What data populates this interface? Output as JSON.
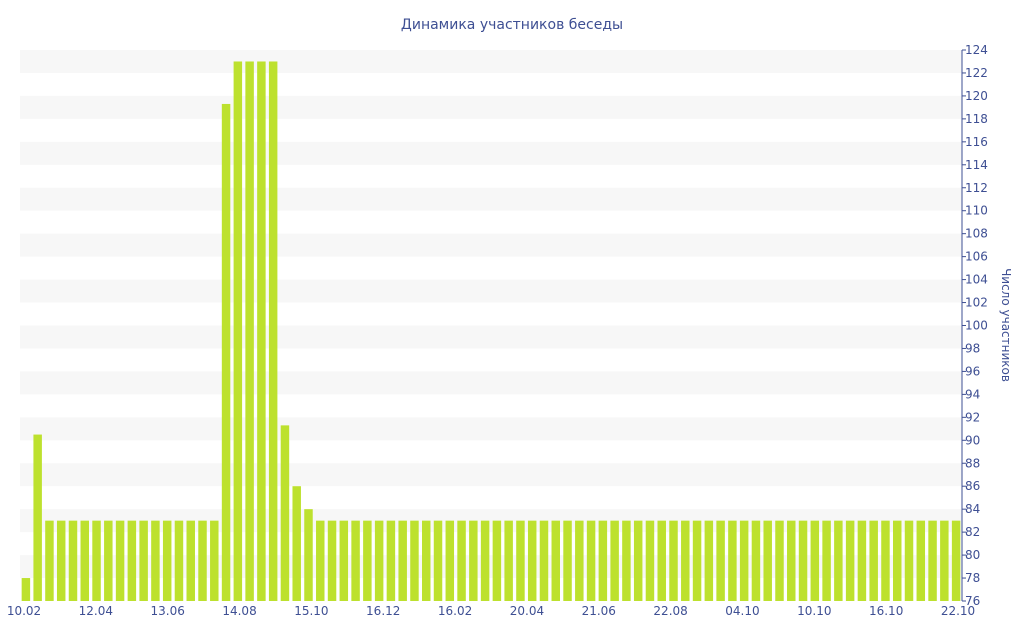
{
  "chart_data": {
    "type": "bar",
    "title": "Динамика участников беседы",
    "ylabel": "Число участников",
    "xlabel": "",
    "ylim": [
      76,
      124
    ],
    "ytick_step": 2,
    "x_tick_labels": [
      "10.02",
      "12.04",
      "13.06",
      "14.08",
      "15.10",
      "16.12",
      "16.02",
      "20.04",
      "21.06",
      "22.08",
      "04.10",
      "10.10",
      "16.10",
      "22.10"
    ],
    "values": [
      78,
      90.5,
      83,
      83,
      83,
      83,
      83,
      83,
      83,
      83,
      83,
      83,
      83,
      83,
      83,
      83,
      83,
      119.3,
      123,
      123,
      123,
      123,
      91.3,
      86,
      84,
      83,
      83,
      83,
      83,
      83,
      83,
      83,
      83,
      83,
      83,
      83,
      83,
      83,
      83,
      83,
      83,
      83,
      83,
      83,
      83,
      83,
      83,
      83,
      83,
      83,
      83,
      83,
      83,
      83,
      83,
      83,
      83,
      83,
      83,
      83,
      83,
      83,
      83,
      83,
      83,
      83,
      83,
      83,
      83,
      83,
      83,
      83,
      83,
      83,
      83,
      83,
      83,
      83,
      83,
      83
    ],
    "grid": true,
    "bar_color": "#bde12e",
    "stripe_color": "#f7f7f7",
    "text_color": "#3e4f93"
  }
}
